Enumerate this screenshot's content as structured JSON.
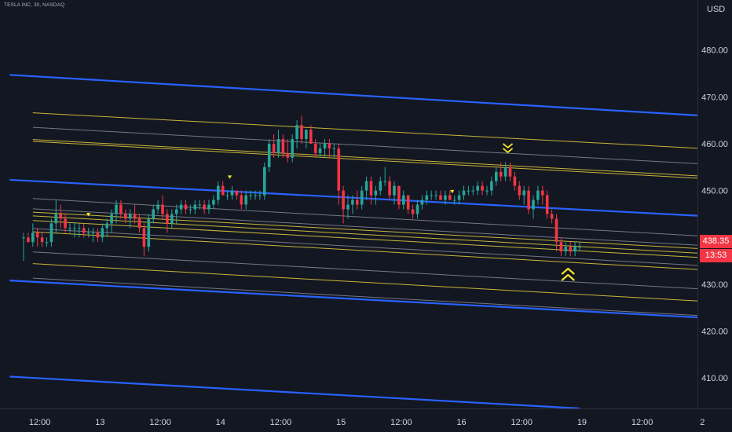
{
  "chart_title": "TESLA INC, 30, NASDAQ",
  "currency": "USD",
  "last_price": "438.35",
  "countdown": "13:53",
  "colors": {
    "background": "#131722",
    "up": "#26a69a",
    "down": "#f23645",
    "channel_blue": "#2962ff",
    "channel_yellow": "#c9b53a",
    "channel_gray": "#9598a1",
    "marker": "#f5e12c",
    "axis_text": "#d1d4dc"
  },
  "icons": [
    "triangle-marker-icon",
    "double-chevron-down-icon",
    "double-chevron-up-icon"
  ],
  "chart_data": {
    "type": "candlestick",
    "title": "TESLA INC, 30, NASDAQ",
    "ylabel": "USD",
    "ylim": [
      403.5,
      489
    ],
    "y_ticks": [
      410,
      420,
      430,
      440,
      450,
      460,
      470,
      480
    ],
    "y_tick_labels": [
      "410.00",
      "420.00",
      "430.00",
      "440.00",
      "450.00",
      "460.00",
      "470.00",
      "480.00"
    ],
    "x_ticks": [
      {
        "bar": 3.5,
        "label": "12:00"
      },
      {
        "bar": 16.5,
        "label": "13"
      },
      {
        "bar": 29.5,
        "label": "12:00"
      },
      {
        "bar": 42.5,
        "label": "14"
      },
      {
        "bar": 55.5,
        "label": "12:00"
      },
      {
        "bar": 68.5,
        "label": "15"
      },
      {
        "bar": 81.5,
        "label": "12:00"
      },
      {
        "bar": 94.5,
        "label": "16"
      },
      {
        "bar": 107.5,
        "label": "12:00"
      },
      {
        "bar": 120.5,
        "label": "19"
      },
      {
        "bar": 133.5,
        "label": "12:00"
      },
      {
        "bar": 146.5,
        "label": "2"
      }
    ],
    "bar_range": [
      0,
      148
    ],
    "candles": [
      [
        0,
        440,
        441,
        435,
        440
      ],
      [
        1,
        440,
        441,
        439,
        439
      ],
      [
        2,
        439,
        443,
        438,
        441
      ],
      [
        3,
        441,
        442,
        438,
        440
      ],
      [
        4,
        440,
        441,
        438,
        439
      ],
      [
        5,
        439,
        440,
        438,
        439
      ],
      [
        6,
        439,
        444,
        438,
        443
      ],
      [
        7,
        443,
        448,
        441,
        445
      ],
      [
        8,
        445,
        447,
        442,
        444
      ],
      [
        9,
        444,
        445,
        441,
        442
      ],
      [
        10,
        442,
        443,
        441,
        442
      ],
      [
        11,
        442,
        443,
        440,
        442
      ],
      [
        12,
        442,
        443,
        440,
        442
      ],
      [
        13,
        442,
        443,
        440,
        441
      ],
      [
        14,
        441,
        442,
        440,
        441
      ],
      [
        15,
        441,
        442,
        439,
        441
      ],
      [
        16,
        441,
        442,
        439,
        440
      ],
      [
        17,
        440,
        443,
        439,
        442
      ],
      [
        18,
        442,
        444,
        440,
        443
      ],
      [
        19,
        443,
        446,
        441,
        445
      ],
      [
        20,
        445,
        448,
        443,
        447
      ],
      [
        21,
        447,
        448,
        444,
        445
      ],
      [
        22,
        445,
        446,
        443,
        444
      ],
      [
        23,
        444,
        446,
        442,
        445
      ],
      [
        24,
        445,
        447,
        443,
        444
      ],
      [
        25,
        444,
        445,
        441,
        442
      ],
      [
        26,
        442,
        443,
        436,
        438
      ],
      [
        27,
        438,
        445,
        437,
        444
      ],
      [
        28,
        444,
        447,
        443,
        446
      ],
      [
        29,
        446,
        448,
        445,
        447
      ],
      [
        30,
        447,
        449,
        444,
        445
      ],
      [
        31,
        445,
        446,
        441,
        443
      ],
      [
        32,
        443,
        446,
        442,
        445
      ],
      [
        33,
        445,
        447,
        443,
        446
      ],
      [
        34,
        446,
        448,
        445,
        447
      ],
      [
        35,
        447,
        448,
        445,
        446
      ],
      [
        36,
        446,
        447,
        445,
        446
      ],
      [
        37,
        446,
        448,
        445,
        447
      ],
      [
        38,
        447,
        448,
        446,
        447
      ],
      [
        39,
        447,
        448,
        445,
        446
      ],
      [
        40,
        446,
        448,
        445,
        447
      ],
      [
        41,
        447,
        449,
        446,
        448
      ],
      [
        42,
        448,
        452,
        447,
        451
      ],
      [
        43,
        451,
        452,
        449,
        449
      ],
      [
        44,
        449,
        450,
        448,
        449
      ],
      [
        45,
        449,
        451,
        448,
        450
      ],
      [
        46,
        450,
        450,
        448,
        449
      ],
      [
        47,
        449,
        450,
        446,
        447
      ],
      [
        48,
        447,
        450,
        446,
        449
      ],
      [
        49,
        449,
        450,
        448,
        449
      ],
      [
        50,
        449,
        450,
        448,
        449
      ],
      [
        51,
        449,
        450,
        448,
        449
      ],
      [
        52,
        449,
        456,
        448,
        455
      ],
      [
        53,
        455,
        461,
        454,
        460
      ],
      [
        54,
        460,
        462,
        457,
        458
      ],
      [
        55,
        458,
        463,
        457,
        461
      ],
      [
        56,
        461,
        462,
        457,
        458
      ],
      [
        57,
        458,
        461,
        456,
        457
      ],
      [
        58,
        457,
        462,
        456,
        461
      ],
      [
        59,
        461,
        465,
        459,
        464
      ],
      [
        60,
        464,
        466,
        460,
        461
      ],
      [
        61,
        461,
        463,
        459,
        463
      ],
      [
        62,
        463,
        464,
        460,
        460
      ],
      [
        63,
        460,
        461,
        457,
        458
      ],
      [
        64,
        458,
        460,
        457,
        459
      ],
      [
        65,
        459,
        461,
        457,
        460
      ],
      [
        66,
        460,
        461,
        457,
        459
      ],
      [
        67,
        459,
        460,
        457,
        459
      ],
      [
        68,
        459,
        460,
        447,
        450
      ],
      [
        69,
        450,
        451,
        443,
        446
      ],
      [
        70,
        446,
        449,
        444,
        447
      ],
      [
        71,
        447,
        449,
        445,
        448
      ],
      [
        72,
        448,
        450,
        446,
        447
      ],
      [
        73,
        447,
        451,
        446,
        450
      ],
      [
        74,
        450,
        453,
        448,
        452
      ],
      [
        75,
        452,
        453,
        447,
        449
      ],
      [
        76,
        449,
        451,
        447,
        450
      ],
      [
        77,
        450,
        453,
        449,
        452
      ],
      [
        78,
        452,
        455,
        451,
        452
      ],
      [
        79,
        452,
        453,
        448,
        449
      ],
      [
        80,
        449,
        452,
        447,
        451
      ],
      [
        81,
        451,
        451,
        446,
        447
      ],
      [
        82,
        447,
        450,
        446,
        449
      ],
      [
        83,
        449,
        449,
        445,
        446
      ],
      [
        84,
        446,
        447,
        444,
        445
      ],
      [
        85,
        445,
        448,
        444,
        447
      ],
      [
        86,
        447,
        449,
        446,
        448
      ],
      [
        87,
        448,
        450,
        447,
        449
      ],
      [
        88,
        449,
        450,
        448,
        449
      ],
      [
        89,
        449,
        450,
        448,
        449
      ],
      [
        90,
        449,
        450,
        448,
        448
      ],
      [
        91,
        448,
        450,
        447,
        449
      ],
      [
        92,
        449,
        450,
        448,
        448
      ],
      [
        93,
        448,
        449,
        447,
        448
      ],
      [
        94,
        448,
        450,
        447,
        449
      ],
      [
        95,
        449,
        451,
        448,
        450
      ],
      [
        96,
        450,
        451,
        449,
        450
      ],
      [
        97,
        450,
        451,
        449,
        450
      ],
      [
        98,
        450,
        452,
        449,
        451
      ],
      [
        99,
        451,
        452,
        449,
        450
      ],
      [
        100,
        450,
        451,
        449,
        450
      ],
      [
        101,
        450,
        453,
        449,
        452
      ],
      [
        102,
        452,
        455,
        451,
        454
      ],
      [
        103,
        454,
        456,
        452,
        453
      ],
      [
        104,
        453,
        456,
        452,
        455
      ],
      [
        105,
        455,
        456,
        452,
        453
      ],
      [
        106,
        453,
        454,
        450,
        451
      ],
      [
        107,
        451,
        452,
        448,
        449
      ],
      [
        108,
        449,
        451,
        447,
        450
      ],
      [
        109,
        450,
        451,
        445,
        446
      ],
      [
        110,
        446,
        449,
        444,
        448
      ],
      [
        111,
        448,
        451,
        447,
        450
      ],
      [
        112,
        450,
        451,
        447,
        449
      ],
      [
        113,
        449,
        450,
        444,
        445
      ],
      [
        114,
        445,
        446,
        443,
        444
      ],
      [
        115,
        444,
        445,
        437,
        439
      ],
      [
        116,
        439,
        440,
        436,
        437
      ],
      [
        117,
        437,
        439,
        436,
        438
      ],
      [
        118,
        438,
        439,
        436,
        437
      ],
      [
        119,
        437,
        439,
        436,
        438
      ],
      [
        120,
        438,
        439,
        437,
        438
      ]
    ],
    "channel_lines": [
      {
        "color": "blue",
        "width": 2.2,
        "from": [
          -3,
          474.7
        ],
        "to": [
          148,
          465.9
        ]
      },
      {
        "color": "blue",
        "width": 2.2,
        "from": [
          -3,
          452.3
        ],
        "to": [
          148,
          444.5
        ]
      },
      {
        "color": "blue",
        "width": 2.2,
        "from": [
          -3,
          430.8
        ],
        "to": [
          148,
          422.8
        ]
      },
      {
        "color": "blue",
        "width": 2.2,
        "from": [
          -3,
          410.3
        ],
        "to": [
          120,
          403.5
        ]
      },
      {
        "color": "yellow",
        "width": 1,
        "from": [
          2,
          466.6
        ],
        "to": [
          148,
          458.9
        ]
      },
      {
        "color": "gray",
        "width": 1,
        "from": [
          2,
          463.5
        ],
        "to": [
          148,
          455.6
        ]
      },
      {
        "color": "yellow",
        "width": 1,
        "from": [
          2,
          460.9
        ],
        "to": [
          148,
          453.0
        ]
      },
      {
        "color": "yellow",
        "width": 1,
        "from": [
          2,
          460.5
        ],
        "to": [
          148,
          452.5
        ]
      },
      {
        "color": "gray",
        "width": 1,
        "from": [
          2,
          448.3
        ],
        "to": [
          148,
          440.2
        ]
      },
      {
        "color": "gray",
        "width": 1,
        "from": [
          2,
          446.1
        ],
        "to": [
          148,
          438.2
        ]
      },
      {
        "color": "yellow",
        "width": 1,
        "from": [
          2,
          445.4
        ],
        "to": [
          148,
          437.5
        ]
      },
      {
        "color": "yellow",
        "width": 1,
        "from": [
          2,
          444.6
        ],
        "to": [
          148,
          436.5
        ]
      },
      {
        "color": "yellow",
        "width": 1,
        "from": [
          2,
          443.6
        ],
        "to": [
          148,
          435.6
        ]
      },
      {
        "color": "yellow",
        "width": 1,
        "from": [
          2,
          441.2
        ],
        "to": [
          148,
          433.0
        ]
      },
      {
        "color": "gray",
        "width": 1,
        "from": [
          2,
          441.9
        ],
        "to": [
          148,
          433.9
        ]
      },
      {
        "color": "gray",
        "width": 1,
        "from": [
          2,
          436.9
        ],
        "to": [
          148,
          428.9
        ]
      },
      {
        "color": "yellow",
        "width": 1,
        "from": [
          2,
          434.4
        ],
        "to": [
          148,
          426.3
        ]
      },
      {
        "color": "gray",
        "width": 1,
        "from": [
          2,
          431.3
        ],
        "to": [
          148,
          423.2
        ]
      }
    ],
    "markers": [
      {
        "icon": "triangle-marker-icon",
        "bar": 14,
        "price": 444.9
      },
      {
        "icon": "triangle-marker-icon",
        "bar": 44.5,
        "price": 452.9
      },
      {
        "icon": "triangle-marker-icon",
        "bar": 92.5,
        "price": 449.8
      },
      {
        "icon": "double-chevron-down-icon",
        "bar": 104.5,
        "price": 459.0
      },
      {
        "icon": "double-chevron-up-icon",
        "bar": 117.5,
        "price": 432.0
      }
    ]
  }
}
